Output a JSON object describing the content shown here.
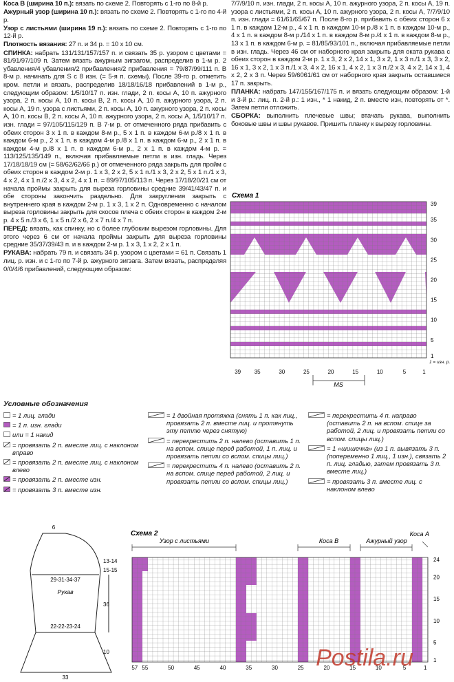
{
  "left_column": {
    "paragraphs": [
      {
        "lead": "Коса В (ширина 10 п.):",
        "text": "вязать по схеме 2. Повторять с 1-го по 8-й р."
      },
      {
        "lead": "Ажурный узор (ширина 10 п.):",
        "text": "вязать по схеме 2. Повторять с 1-го по 4-й р."
      },
      {
        "lead": "Узор с листьями (ширина 19 п.):",
        "text": "вязать по схеме 2. Повторять с 1-го по 12-й р."
      },
      {
        "lead": "Плотность вязания:",
        "text": "27 п. и 34 р. = 10 х 10 см."
      },
      {
        "lead": "СПИНКА:",
        "text": "набрать 131/131/157/157 п. и связать 35 р. узором с цветами = 81/91/97/109 п. Затем вязать ажурным зигзагом, распределив в 1-м р. 2 убавления/4 убавления/2 прибавления/2 прибавления = 79/87/99/111 п. В 8-м р. начинать для S с 8 изн. (= 5-я п. схемы). После 39-го р. отметить кром. петли и вязать, распределив 18/18/16/18 прибавлений в 1-м р., следующим образом: 1/5/10/17 п. изн. глади, 2 п. косы А, 10 п. ажурного узора, 2 п. косы А, 10 п. косы В, 2 п. косы А, 10 п. ажурного узора, 2 п. косы А, 19 п. узора с листьями, 2 п. косы А, 10 п. ажурного узора, 2 п. косы А, 10 п. косы В, 2 п. косы А, 10 п. ажурного узора, 2 п. косы А, 1/5/10/17 п. изн. глади = 97/105/115/129 п. В 7-м р. от отмеченного ряда прибавить с обеих сторон 3 х 1 п. в каждом 8-м р., 5 х 1 п. в каждом 6-м р./8 х 1 п. в каждом 6-м р., 2 х 1 п. в каждом 4-м р./8 х 1 п. в каждом 6-м р., 2 х 1 п. в каждом 4-м р./8 х 1 п. в каждом 6-м р., 2 х 1 п. в каждом 4-м р. = 113/125/135/149 п., включая прибавляемые петли в изн. гладь. Через 17/18/18/19 см (= 58/62/62/66 р.) от отмеченного ряда закрыть для пройм с обеих сторон в каждом 2-м р. 1 х 3, 2 х 2, 5 х 1 п./1 х 3, 2 х 2, 5 х 1 п./1 х 3, 4 х 2, 4 х 1 п./2 х 3, 4 х 2, 4 х 1 п. = 89/97/105/113 п. Через 17/18/20/21 см от начала проймы закрыть для выреза горловины средние 39/41/43/47 п. и обе стороны закончить раздельно. Для закругления закрыть с внутреннего края в каждом 2-м р. 1 х 3, 1 х 2 п. Одновременно с началом выреза горловины закрыть для скосов плеча с обеих сторон в каждом 2-м р. 4 х 5 п./3 х 6, 1 х 5 п./2 х 6, 2 х 7 п./4 х 7 п."
      },
      {
        "lead": "ПЕРЕД:",
        "text": "вязать, как спинку, но с более глубоким вырезом горловины. Для этого через 6 см от начала проймы закрыть для выреза горловины средние 35/37/39/43 п. и в каждом 2-м р. 1 х 3, 1 х 2, 2 х 1 п."
      },
      {
        "lead": "РУКАВА:",
        "text": "набрать 79 п. и связать 34 р. узором с цветами = 61 п. Связать 1 лиц. р. изн. и с 1-го по 7-й р. ажурного зигзага. Затем вязать, распределяя 0/0/4/6 прибавлений, следующим образом:"
      }
    ]
  },
  "right_column": {
    "paragraphs": [
      {
        "text": "7/7/9/10 п. изн. глади, 2 п. косы А, 10 п. ажурного узора, 2 п. косы А, 19 п. узора с листьями, 2 п. косы А, 10 п. ажурного узора, 2 п. косы А, 7/7/9/10 п. изн. глади = 61/61/65/67 п. После 8-го р. прибавить с обеих сторон 6 х 1 п. в каждом 12-м р., 4 х 1 п. в каждом 10-м р./8 х 1 п. в каждом 10-м р., 4 х 1 п. в каждом 8-м р./14 х 1 п. в каждом 8-м р./4 х 1 п. в каждом 8-м р., 13 х 1 п. в каждом 6-м р. = 81/85/93/101 п., включая прибавляемые петли в изн. гладь. Через 46 см от наборного края закрыть для оката рукава с обеих сторон в каждом 2-м р. 1 х 3, 2 х 2, 14 х 1, 3 х 2, 1 х 3 п./1 х 3, 3 х 2, 16 х 1, 3 х 2, 1 х 3 п./1 х 3, 4 х 2, 16 х 1, 4 х 2, 1 х 3 п./2 х 3, 4 х 2, 14 х 1, 4 х 2, 2 х 3 п. Через 59/6061/61 см от наборного края закрыть оставшиеся 17 п. закрыть."
      },
      {
        "lead": "ПЛАНКА:",
        "text": "набрать 147/155/167/175 п. и вязать следующим образом: 1-й и 3-й р.: лиц. п. 2-й р.: 1 изн., * 1 накид, 2 п. вместе изн, повторять от *. Затем петли отложить."
      },
      {
        "lead": "СБОРКА:",
        "text": "выполнить плечевые швы; втачать рукава, выполнить боковые швы и швы рукавов. Пришить планку к вырезу горловины."
      }
    ]
  },
  "scheme1": {
    "title": "Схема 1",
    "right_numbers": [
      39,
      35,
      30,
      25,
      20,
      15,
      10,
      5,
      1
    ],
    "bottom_numbers": [
      39,
      35,
      30,
      25,
      20,
      15,
      10,
      5,
      1
    ],
    "repeat_label": "MS",
    "note": "1 = изн. р."
  },
  "legend": {
    "title": "Условные обозначения",
    "columns": [
      [
        "= 1 лиц. глади",
        "= 1 п. изн. глади",
        "или = 1 накид",
        "= провязать 2 п. вместе лиц. с наклоном вправо",
        "= провязать 2 п. вместе лиц. с наклоном влево",
        "= провязать 2 п. вместе изн.",
        "= провязать 3 п. вместе изн."
      ],
      [
        "= 1 двойная протяжка (снять 1 п. как лиц., провязать 2 п. вместе лиц. и протянуть эту петлю через снятую)",
        "= перекрестить 2 п. налево (оставить 1 п. на вспом. спице перед работой, 1 п. лиц. и провязать петли со вспом. спицы лиц.)",
        "= перекрестить 4 п. налево (оставить 2 п. на вспом. спице перед работой, 2 лиц. и провязать петли со вспом. спицы лиц.)"
      ],
      [
        "= перекрестить 4 п. направо (оставить 2 п. на вспом. спице за работой, 2 лиц. и провязать петли со вспом. спицы лиц.)",
        "= 1 «шишечка» (из 1 п. вывязать 3 п. (попеременно 1 лиц., 1 изн.), связать 2 п. лиц. гладью, затем провязать 3 п. вместе лиц.)",
        "= провязать 3 п. вместе лиц. с наклоном влево"
      ]
    ]
  },
  "sleeve": {
    "top": "6",
    "cap_height_a": "13-14",
    "cap_height_b": "15-15",
    "upper_width": "29-31-34-37",
    "name": "Рукав",
    "length": "36",
    "lower_width": "22-22-23-24",
    "cuff": "10",
    "bottom": "33"
  },
  "scheme2": {
    "title": "Схема 2",
    "sections": [
      "Узор с листьями",
      "Коса В",
      "Ажурный узор",
      "Коса А"
    ],
    "right_numbers": [
      24,
      20,
      15,
      10,
      5,
      1
    ],
    "bottom_numbers": [
      57,
      55,
      50,
      45,
      40,
      35,
      30,
      25,
      20,
      15,
      10,
      5,
      1
    ]
  },
  "watermark": "Postila.ru"
}
